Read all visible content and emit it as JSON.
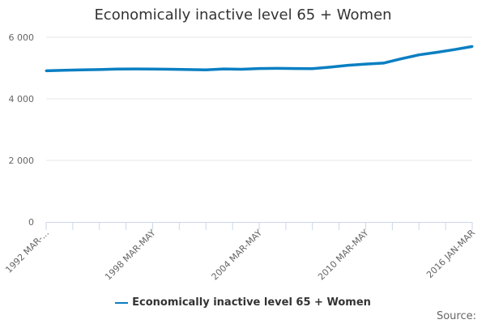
{
  "chart_data": {
    "type": "line",
    "title": "Economically inactive level 65 + Women",
    "xlabel": "",
    "ylabel": "",
    "ylim": [
      0,
      6000
    ],
    "yticks": [
      0,
      2000,
      4000,
      6000
    ],
    "ytick_labels": [
      "0",
      "2 000",
      "4 000",
      "6 000"
    ],
    "xtick_labels": [
      "1992 MAR-...",
      "1998 MAR-MAY",
      "2004 MAR-MAY",
      "2010 MAR-MAY",
      "2016 JAN-MAR"
    ],
    "grid": true,
    "legend_position": "bottom",
    "color": "#0a7fc2",
    "series": [
      {
        "name": "Economically inactive level 65 + Women",
        "x": [
          1992,
          1993,
          1994,
          1995,
          1996,
          1997,
          1998,
          1999,
          2000,
          2001,
          2002,
          2003,
          2004,
          2005,
          2006,
          2007,
          2008,
          2009,
          2010,
          2011,
          2012,
          2013,
          2014,
          2015,
          2016
        ],
        "values": [
          4910,
          4925,
          4940,
          4950,
          4965,
          4970,
          4965,
          4960,
          4950,
          4940,
          4970,
          4960,
          4985,
          4990,
          4985,
          4980,
          5030,
          5090,
          5130,
          5160,
          5300,
          5430,
          5510,
          5600,
          5700
        ]
      }
    ]
  },
  "source_label": "Source:"
}
